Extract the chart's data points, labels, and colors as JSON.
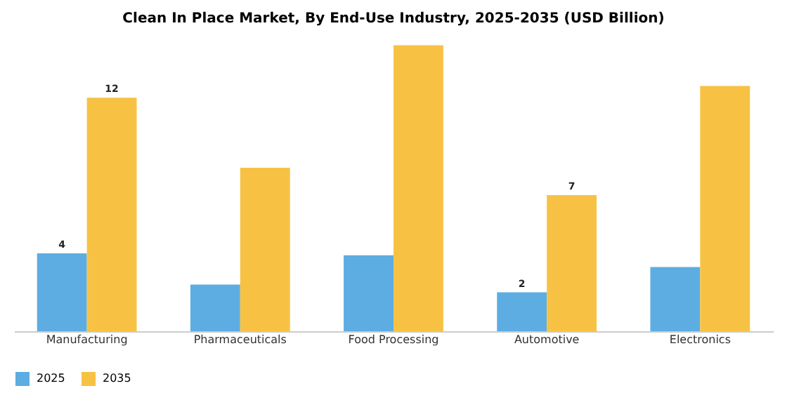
{
  "chart_data": {
    "type": "bar",
    "title": "Clean In Place Market, By End-Use Industry, 2025-2035 (USD Billion)",
    "categories": [
      "Manufacturing",
      "Pharmaceuticals",
      "Food Processing",
      "Automotive",
      "Electronics"
    ],
    "series": [
      {
        "name": "2025",
        "color": "#5dade2",
        "values": [
          4,
          2.4,
          3.9,
          2,
          3.3
        ],
        "value_labels": [
          "4",
          null,
          null,
          "2",
          null
        ]
      },
      {
        "name": "2035",
        "color": "#f7c244",
        "values": [
          12,
          8.4,
          14.7,
          7,
          12.6
        ],
        "value_labels": [
          "12",
          null,
          null,
          "7",
          null
        ]
      }
    ],
    "grid": false,
    "legend": "bottom",
    "tick_labels": "x"
  }
}
